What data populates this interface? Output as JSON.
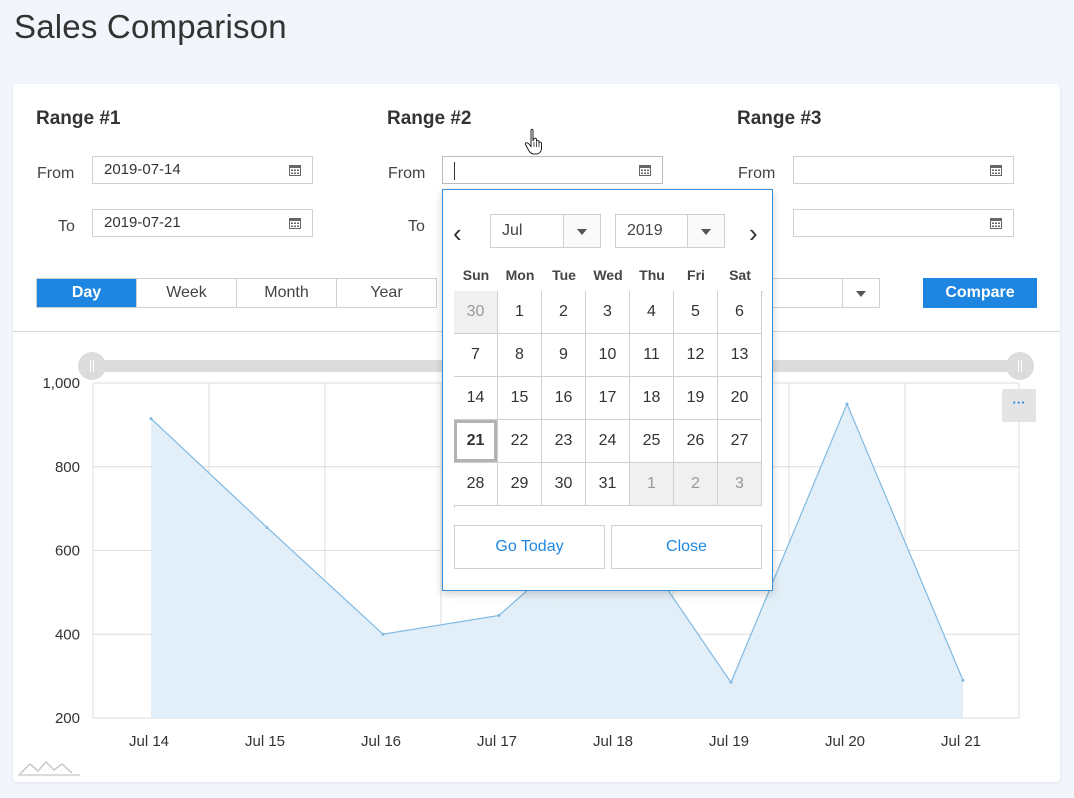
{
  "page": {
    "title": "Sales Comparison"
  },
  "ranges": [
    {
      "title": "Range #1",
      "from_label": "From",
      "to_label": "To",
      "from_value": "2019-07-14",
      "to_value": "2019-07-21"
    },
    {
      "title": "Range #2",
      "from_label": "From",
      "to_label": "To",
      "from_value": "",
      "to_value": ""
    },
    {
      "title": "Range #3",
      "from_label": "From",
      "to_label": "To",
      "from_value": "",
      "to_value": ""
    }
  ],
  "period": {
    "options": [
      "Day",
      "Week",
      "Month",
      "Year"
    ],
    "selected": "Day"
  },
  "compare_label": "Compare",
  "menu_label": "···",
  "datepicker": {
    "month": "Jul",
    "year": "2019",
    "prev_glyph": "‹",
    "next_glyph": "›",
    "weekdays": [
      "Sun",
      "Mon",
      "Tue",
      "Wed",
      "Thu",
      "Fri",
      "Sat"
    ],
    "weeks": [
      [
        "30",
        "1",
        "2",
        "3",
        "4",
        "5",
        "6"
      ],
      [
        "7",
        "8",
        "9",
        "10",
        "11",
        "12",
        "13"
      ],
      [
        "14",
        "15",
        "16",
        "17",
        "18",
        "19",
        "20"
      ],
      [
        "21",
        "22",
        "23",
        "24",
        "25",
        "26",
        "27"
      ],
      [
        "28",
        "29",
        "30",
        "31",
        "1",
        "2",
        "3"
      ]
    ],
    "outside_month": [
      [
        0,
        0
      ],
      [
        4,
        4
      ],
      [
        4,
        5
      ],
      [
        4,
        6
      ]
    ],
    "today": [
      3,
      0
    ],
    "go_today_label": "Go Today",
    "close_label": "Close"
  },
  "colors": {
    "accent": "#1e86e0",
    "series_line": "#7fb9e2",
    "series_fill": "#e2eef8"
  },
  "chart_data": {
    "type": "area",
    "categories": [
      "Jul 14",
      "Jul 15",
      "Jul 16",
      "Jul 17",
      "Jul 18",
      "Jul 19",
      "Jul 20",
      "Jul 21"
    ],
    "series": [
      {
        "values": [
          915,
          655,
          400,
          445,
          690,
          285,
          950,
          290
        ]
      }
    ],
    "y_ticks": [
      "1,000",
      "800",
      "600",
      "400",
      "200"
    ],
    "ylim": [
      200,
      1000
    ],
    "grid": true,
    "legend": "none"
  }
}
